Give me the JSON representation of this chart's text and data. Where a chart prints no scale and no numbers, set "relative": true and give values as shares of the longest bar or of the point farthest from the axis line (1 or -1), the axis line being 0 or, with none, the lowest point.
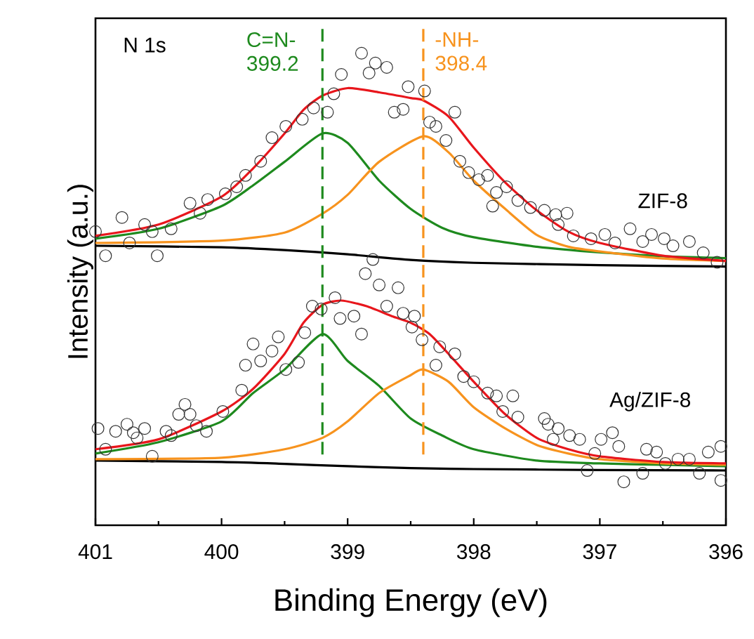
{
  "chart_data": {
    "type": "line",
    "relative": true,
    "xlabel": "Binding Energy (eV)",
    "ylabel": "Intensity (a.u.)",
    "xlim": [
      401,
      396
    ],
    "xticks": [
      401,
      400,
      399,
      398,
      397,
      396
    ],
    "ref_lines": [
      {
        "axis": "x",
        "value": 399.2,
        "label": "C=N- 399.2",
        "color": "#1e8a1e",
        "line_style": "dashed"
      },
      {
        "axis": "x",
        "value": 398.4,
        "label": "-NH- 398.4",
        "color": "#f7931e",
        "line_style": "dashed"
      }
    ],
    "annotations": [
      "N 1s",
      "ZIF-8",
      "Ag/ZIF-8"
    ],
    "series": [
      {
        "type": "scatter",
        "marker": "circle",
        "color": "#333333",
        "x": [
          401.0,
          400.92,
          400.79,
          400.73,
          400.61,
          400.55,
          400.51,
          400.4,
          400.25,
          400.17,
          400.11,
          399.97,
          399.88,
          399.81,
          399.69,
          399.6,
          399.49,
          399.36,
          399.27,
          399.16,
          399.11,
          399.05,
          398.89,
          398.83,
          398.78,
          398.69,
          398.63,
          398.56,
          398.52,
          398.39,
          398.35,
          398.3,
          398.15,
          398.22,
          398.11,
          398.04,
          397.96,
          397.89,
          397.82,
          397.74,
          397.85,
          397.65,
          397.55,
          397.44,
          397.35,
          397.26,
          397.33,
          397.21,
          397.07,
          396.96,
          396.88,
          396.76,
          396.66,
          396.59,
          396.49,
          396.42,
          396.29,
          396.18,
          396.07
        ],
        "values": [
          0.622,
          0.571,
          0.652,
          0.598,
          0.637,
          0.622,
          0.571,
          0.628,
          0.682,
          0.661,
          0.69,
          0.702,
          0.717,
          0.741,
          0.771,
          0.821,
          0.845,
          0.86,
          0.884,
          0.875,
          0.914,
          0.955,
          1.0,
          0.958,
          0.979,
          0.97,
          0.875,
          0.881,
          0.929,
          0.92,
          0.854,
          0.845,
          0.875,
          0.815,
          0.771,
          0.747,
          0.732,
          0.741,
          0.705,
          0.717,
          0.676,
          0.688,
          0.673,
          0.667,
          0.658,
          0.661,
          0.637,
          0.613,
          0.607,
          0.616,
          0.598,
          0.628,
          0.601,
          0.616,
          0.607,
          0.592,
          0.601,
          0.577,
          0.557
        ]
      },
      {
        "marker": "none",
        "color": "#000000",
        "x": [
          401,
          400,
          399.5,
          399,
          398.5,
          398,
          397,
          396
        ],
        "values": [
          0.592,
          0.589,
          0.583,
          0.574,
          0.562,
          0.556,
          0.551,
          0.548
        ]
      },
      {
        "marker": "none",
        "color": "#1e8a1e",
        "x": [
          401,
          400.5,
          400,
          399.75,
          399.5,
          399.2,
          399,
          398.75,
          398.5,
          398.25,
          398,
          397.5,
          397,
          396.5,
          396
        ],
        "values": [
          0.607,
          0.628,
          0.676,
          0.72,
          0.77,
          0.83,
          0.81,
          0.73,
          0.67,
          0.63,
          0.61,
          0.59,
          0.578,
          0.57,
          0.566
        ]
      },
      {
        "marker": "none",
        "color": "#f7931e",
        "x": [
          401,
          400,
          399.5,
          399.2,
          399,
          398.75,
          398.4,
          398.2,
          398,
          397.75,
          397.5,
          397.25,
          397,
          396.5,
          396
        ],
        "values": [
          0.598,
          0.603,
          0.62,
          0.66,
          0.7,
          0.77,
          0.824,
          0.79,
          0.73,
          0.67,
          0.615,
          0.59,
          0.58,
          0.565,
          0.56
        ]
      },
      {
        "marker": "none",
        "color": "#e8161c",
        "x": [
          401,
          400.5,
          400,
          399.75,
          399.5,
          399.35,
          399.2,
          399,
          398.75,
          398.5,
          398.4,
          398.2,
          398,
          397.75,
          397.5,
          397.25,
          397,
          396.5,
          396
        ],
        "values": [
          0.613,
          0.637,
          0.696,
          0.756,
          0.83,
          0.88,
          0.91,
          0.926,
          0.917,
          0.905,
          0.9,
          0.866,
          0.8,
          0.726,
          0.667,
          0.622,
          0.598,
          0.571,
          0.56
        ]
      },
      {
        "type": "scatter",
        "marker": "circle",
        "color": "#333333",
        "x": [
          400.98,
          400.84,
          400.75,
          400.7,
          400.61,
          400.67,
          400.92,
          400.55,
          400.44,
          400.4,
          400.34,
          400.29,
          400.25,
          400.2,
          400.12,
          399.99,
          399.84,
          399.81,
          399.75,
          399.69,
          399.6,
          399.55,
          399.49,
          399.39,
          399.34,
          399.28,
          399.21,
          399.1,
          399.06,
          398.95,
          398.89,
          398.86,
          398.75,
          398.6,
          398.8,
          398.69,
          398.56,
          398.49,
          398.47,
          398.41,
          398.3,
          398.27,
          398.15,
          398.08,
          398.0,
          397.89,
          397.82,
          397.69,
          397.77,
          397.65,
          397.44,
          397.41,
          397.33,
          397.24,
          397.16,
          397.37,
          397.04,
          396.99,
          396.9,
          396.85,
          397.1,
          396.81,
          396.66,
          396.63,
          396.55,
          396.48,
          396.38,
          396.29,
          396.21,
          396.14,
          396.04,
          396.04
        ],
        "values": [
          0.205,
          0.199,
          0.214,
          0.196,
          0.205,
          0.185,
          0.161,
          0.146,
          0.199,
          0.19,
          0.235,
          0.256,
          0.235,
          0.211,
          0.199,
          0.241,
          0.286,
          0.339,
          0.384,
          0.348,
          0.369,
          0.399,
          0.33,
          0.345,
          0.408,
          0.464,
          0.458,
          0.482,
          0.438,
          0.443,
          0.405,
          0.533,
          0.509,
          0.503,
          0.563,
          0.464,
          0.449,
          0.42,
          0.443,
          0.393,
          0.339,
          0.378,
          0.363,
          0.315,
          0.304,
          0.28,
          0.274,
          0.274,
          0.241,
          0.229,
          0.226,
          0.214,
          0.205,
          0.19,
          0.182,
          0.182,
          0.152,
          0.182,
          0.196,
          0.167,
          0.116,
          0.092,
          0.11,
          0.161,
          0.155,
          0.131,
          0.14,
          0.14,
          0.11,
          0.155,
          0.167,
          0.095
        ]
      },
      {
        "marker": "none",
        "color": "#000000",
        "x": [
          401,
          400,
          399.5,
          399,
          398.5,
          398,
          397,
          396
        ],
        "values": [
          0.137,
          0.134,
          0.13,
          0.125,
          0.121,
          0.119,
          0.117,
          0.116
        ]
      },
      {
        "marker": "none",
        "color": "#1e8a1e",
        "x": [
          401,
          400.5,
          400,
          399.75,
          399.5,
          399.2,
          399,
          398.75,
          398.5,
          398.25,
          398,
          397.5,
          397,
          396.5,
          396
        ],
        "values": [
          0.152,
          0.176,
          0.22,
          0.28,
          0.33,
          0.405,
          0.348,
          0.295,
          0.226,
          0.19,
          0.161,
          0.137,
          0.131,
          0.128,
          0.125
        ]
      },
      {
        "marker": "none",
        "color": "#f7931e",
        "x": [
          401,
          400,
          399.5,
          399.2,
          399,
          398.75,
          398.5,
          398.4,
          398.2,
          398,
          397.75,
          397.5,
          397.25,
          397,
          396.5,
          396
        ],
        "values": [
          0.14,
          0.143,
          0.161,
          0.185,
          0.22,
          0.28,
          0.318,
          0.33,
          0.304,
          0.25,
          0.205,
          0.17,
          0.152,
          0.14,
          0.131,
          0.128
        ]
      },
      {
        "marker": "none",
        "color": "#e8161c",
        "x": [
          401,
          400.5,
          400,
          399.75,
          399.5,
          399.35,
          399.2,
          399.05,
          398.85,
          398.65,
          398.5,
          398.35,
          398.2,
          398,
          397.75,
          397.5,
          397.25,
          397,
          396.5,
          396
        ],
        "values": [
          0.161,
          0.182,
          0.241,
          0.289,
          0.363,
          0.429,
          0.467,
          0.476,
          0.464,
          0.443,
          0.429,
          0.405,
          0.363,
          0.304,
          0.235,
          0.185,
          0.161,
          0.146,
          0.134,
          0.131
        ]
      }
    ]
  }
}
